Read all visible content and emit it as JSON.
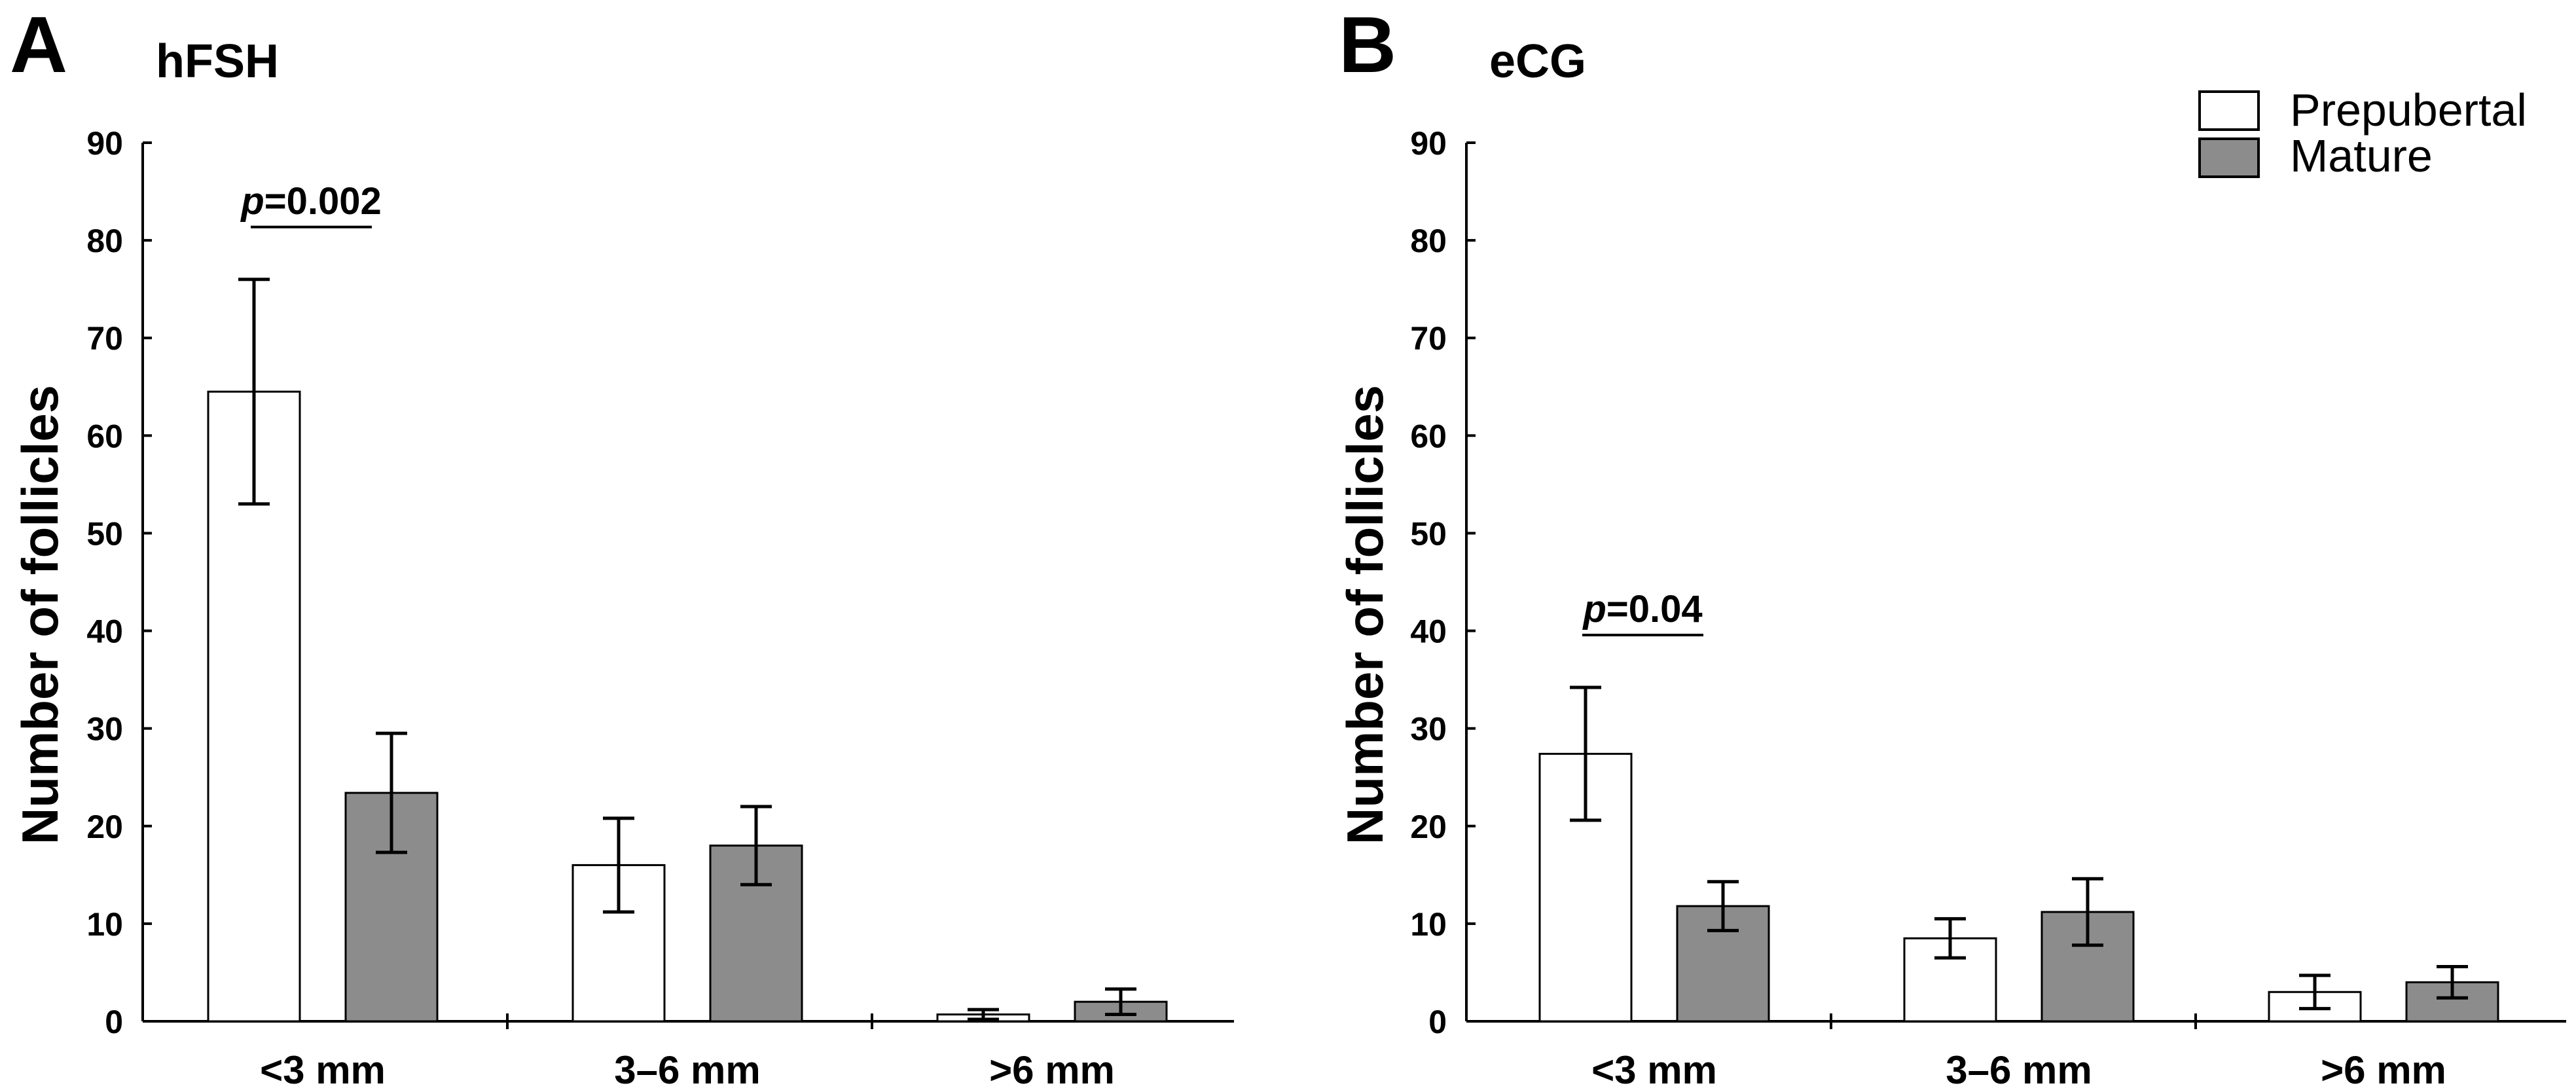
{
  "chart_data": [
    {
      "type": "bar",
      "panel": "A",
      "title": "hFSH",
      "xlabel": "",
      "ylabel": "Number of follicles",
      "ylim": [
        0,
        90
      ],
      "yticks": [
        0,
        10,
        20,
        30,
        40,
        50,
        60,
        70,
        80,
        90
      ],
      "categories": [
        "<3 mm",
        "3–6 mm",
        ">6 mm"
      ],
      "series": [
        {
          "name": "Prepubertal",
          "color": "#ffffff",
          "values": [
            64.5,
            16.0,
            0.7
          ],
          "errors": [
            11.5,
            4.8,
            0.5
          ]
        },
        {
          "name": "Mature",
          "color": "#8c8c8c",
          "values": [
            23.4,
            18.0,
            2.0
          ],
          "errors": [
            6.1,
            4.0,
            1.3
          ]
        }
      ],
      "annotations": [
        {
          "category": 0,
          "p_label": "p",
          "p_value": "=0.002"
        }
      ]
    },
    {
      "type": "bar",
      "panel": "B",
      "title": "eCG",
      "xlabel": "",
      "ylabel": "Number of follicles",
      "ylim": [
        0,
        90
      ],
      "yticks": [
        0,
        10,
        20,
        30,
        40,
        50,
        60,
        70,
        80,
        90
      ],
      "categories": [
        "<3 mm",
        "3–6 mm",
        ">6 mm"
      ],
      "series": [
        {
          "name": "Prepubertal",
          "color": "#ffffff",
          "values": [
            27.4,
            8.5,
            3.0
          ],
          "errors": [
            6.8,
            2.0,
            1.7
          ]
        },
        {
          "name": "Mature",
          "color": "#8c8c8c",
          "values": [
            11.8,
            11.2,
            4.0
          ],
          "errors": [
            2.5,
            3.4,
            1.6
          ]
        }
      ],
      "annotations": [
        {
          "category": 0,
          "p_label": "p",
          "p_value": "=0.04"
        }
      ]
    }
  ],
  "legend": {
    "placement": "top-right",
    "items": [
      {
        "label": "Prepubertal",
        "color": "#ffffff"
      },
      {
        "label": "Mature",
        "color": "#8c8c8c"
      }
    ]
  }
}
